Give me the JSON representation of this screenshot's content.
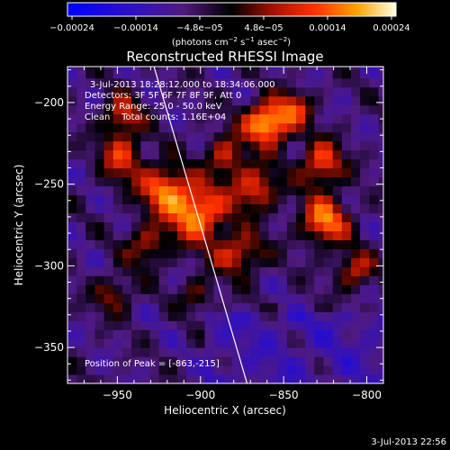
{
  "chart_data": {
    "type": "heatmap",
    "title": "Reconstructed RHESSI Image",
    "xlabel": "Heliocentric X (arcsec)",
    "ylabel": "Heliocentric Y (arcsec)",
    "xlim": [
      -980,
      -790
    ],
    "ylim": [
      -372,
      -178
    ],
    "x_ticks": [
      -950,
      -900,
      -850,
      -800
    ],
    "x_tick_labels": [
      "−950",
      "−900",
      "−850",
      "−800"
    ],
    "y_ticks": [
      -200,
      -250,
      -300,
      -350
    ],
    "y_tick_labels": [
      "−200",
      "−250",
      "−300",
      "−350"
    ],
    "colorbar": {
      "range": [
        -0.00024,
        0.00024
      ],
      "ticks": [
        "−0.00024",
        "−0.00014",
        "−4.8e−05",
        "4.8e−05",
        "0.00014",
        "0.00024"
      ],
      "units_main": "(photons cm",
      "units_sup1": "−2",
      "units_mid": " s",
      "units_sup2": "−1",
      "units_end": " asec",
      "units_sup3": "−2",
      "units_close": ")"
    },
    "annotations": {
      "time_range": "3-Jul-2013 18:28:12.000 to 18:34:06.000",
      "detectors": "Detectors: 3F 5F 6F 7F 8F 9F, Att 0",
      "energy": "Energy Range: 25.0 - 50.0 keV",
      "clean": "Clean    Total counts: 1.16E+04",
      "peak": "Position of Peak = [-863,-215]"
    },
    "limb_line": {
      "x1": -928,
      "y1": -178,
      "x2": -872,
      "y2": -372
    },
    "emission_sources": [
      {
        "x": -862,
        "y": -215,
        "intensity": 1.0,
        "sx": 10,
        "sy": 9
      },
      {
        "x": -905,
        "y": -270,
        "intensity": 0.85,
        "sx": 12,
        "sy": 12
      },
      {
        "x": -925,
        "y": -255,
        "intensity": 0.7,
        "sx": 10,
        "sy": 10
      },
      {
        "x": -950,
        "y": -235,
        "intensity": 0.55,
        "sx": 9,
        "sy": 11
      },
      {
        "x": -950,
        "y": -210,
        "intensity": 0.5,
        "sx": 8,
        "sy": 8
      },
      {
        "x": -830,
        "y": -240,
        "intensity": 0.65,
        "sx": 9,
        "sy": 10
      },
      {
        "x": -828,
        "y": -275,
        "intensity": 0.75,
        "sx": 10,
        "sy": 10
      },
      {
        "x": -870,
        "y": -255,
        "intensity": 0.6,
        "sx": 10,
        "sy": 10
      },
      {
        "x": -880,
        "y": -295,
        "intensity": 0.55,
        "sx": 11,
        "sy": 9
      },
      {
        "x": -810,
        "y": -305,
        "intensity": 0.5,
        "sx": 8,
        "sy": 8
      },
      {
        "x": -888,
        "y": -235,
        "intensity": 0.5,
        "sx": 8,
        "sy": 9
      },
      {
        "x": -935,
        "y": -290,
        "intensity": 0.45,
        "sx": 9,
        "sy": 9
      },
      {
        "x": -955,
        "y": -320,
        "intensity": 0.4,
        "sx": 8,
        "sy": 8
      },
      {
        "x": -905,
        "y": -320,
        "intensity": 0.35,
        "sx": 7,
        "sy": 7
      },
      {
        "x": -845,
        "y": -205,
        "intensity": 0.45,
        "sx": 7,
        "sy": 7
      }
    ]
  },
  "footer": {
    "timestamp": "3-Jul-2013 22:56"
  }
}
